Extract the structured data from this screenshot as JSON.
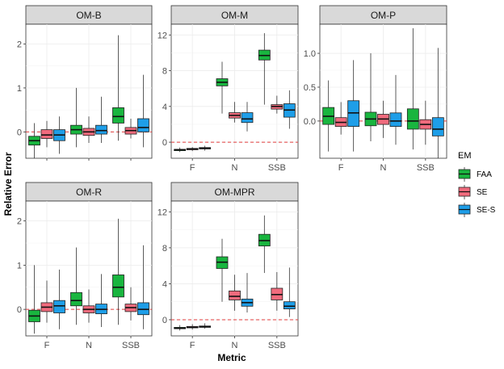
{
  "chart_data": {
    "type": "boxplot",
    "xlabel": "Metric",
    "ylabel": "Relative Error",
    "categories": [
      "F",
      "N",
      "SSB"
    ],
    "legend": {
      "title": "EM",
      "position": "right",
      "entries": [
        {
          "name": "FAA",
          "color": "#19b53f"
        },
        {
          "name": "SE",
          "color": "#f06b7d"
        },
        {
          "name": "SE-S",
          "color": "#1e9ee8"
        }
      ]
    },
    "reference_line": {
      "y": 0,
      "style": "dashed",
      "color": "#e03c3c"
    },
    "panels": [
      {
        "title": "OM-B",
        "ylim": [
          -0.6,
          2.45
        ],
        "yticks": [
          0,
          1,
          2
        ],
        "ytick_labels": [
          "0",
          "1",
          "2"
        ],
        "show_x_labels": false,
        "boxes": [
          {
            "category": "F",
            "em": "FAA",
            "min": -0.6,
            "q1": -0.3,
            "median": -0.2,
            "q3": -0.1,
            "max": 0.2
          },
          {
            "category": "F",
            "em": "SE",
            "min": -0.35,
            "q1": -0.15,
            "median": -0.07,
            "q3": 0.05,
            "max": 0.25
          },
          {
            "category": "F",
            "em": "SE-S",
            "min": -0.5,
            "q1": -0.2,
            "median": -0.07,
            "q3": 0.05,
            "max": 0.35
          },
          {
            "category": "N",
            "em": "FAA",
            "min": -0.35,
            "q1": -0.05,
            "median": 0.05,
            "q3": 0.15,
            "max": 1.0
          },
          {
            "category": "N",
            "em": "SE",
            "min": -0.25,
            "q1": -0.08,
            "median": 0.0,
            "q3": 0.08,
            "max": 0.35
          },
          {
            "category": "N",
            "em": "SE-S",
            "min": -0.25,
            "q1": -0.05,
            "median": 0.03,
            "q3": 0.15,
            "max": 0.8
          },
          {
            "category": "SSB",
            "em": "FAA",
            "min": -0.2,
            "q1": 0.2,
            "median": 0.35,
            "q3": 0.55,
            "max": 2.2
          },
          {
            "category": "SSB",
            "em": "SE",
            "min": -0.15,
            "q1": -0.05,
            "median": 0.03,
            "q3": 0.1,
            "max": 0.3
          },
          {
            "category": "SSB",
            "em": "SE-S",
            "min": -0.35,
            "q1": 0.0,
            "median": 0.1,
            "q3": 0.3,
            "max": 1.3
          }
        ]
      },
      {
        "title": "OM-M",
        "ylim": [
          -1.8,
          13.2
        ],
        "yticks": [
          0,
          4,
          8,
          12
        ],
        "ytick_labels": [
          "0",
          "4",
          "8",
          "12"
        ],
        "show_x_labels": true,
        "boxes": [
          {
            "category": "F",
            "em": "FAA",
            "min": -1.1,
            "q1": -0.95,
            "median": -0.85,
            "q3": -0.8,
            "max": -0.6
          },
          {
            "category": "F",
            "em": "SE",
            "min": -1.0,
            "q1": -0.85,
            "median": -0.75,
            "q3": -0.7,
            "max": -0.55
          },
          {
            "category": "F",
            "em": "SE-S",
            "min": -0.95,
            "q1": -0.75,
            "median": -0.7,
            "q3": -0.6,
            "max": -0.4
          },
          {
            "category": "N",
            "em": "FAA",
            "min": 3.2,
            "q1": 6.3,
            "median": 6.7,
            "q3": 7.1,
            "max": 9.0
          },
          {
            "category": "N",
            "em": "SE",
            "min": 2.2,
            "q1": 2.7,
            "median": 3.0,
            "q3": 3.3,
            "max": 4.5
          },
          {
            "category": "N",
            "em": "SE-S",
            "min": 1.2,
            "q1": 2.2,
            "median": 2.6,
            "q3": 3.3,
            "max": 4.5
          },
          {
            "category": "SSB",
            "em": "FAA",
            "min": 4.2,
            "q1": 9.2,
            "median": 9.7,
            "q3": 10.3,
            "max": 12.2
          },
          {
            "category": "SSB",
            "em": "SE",
            "min": 3.2,
            "q1": 3.7,
            "median": 4.0,
            "q3": 4.2,
            "max": 5.2
          },
          {
            "category": "SSB",
            "em": "SE-S",
            "min": 1.5,
            "q1": 2.8,
            "median": 3.6,
            "q3": 4.3,
            "max": 5.8
          }
        ]
      },
      {
        "title": "OM-P",
        "ylim": [
          -0.55,
          1.43
        ],
        "yticks": [
          0.0,
          0.5,
          1.0
        ],
        "ytick_labels": [
          "0.0",
          "0.5",
          "1.0"
        ],
        "show_x_labels": true,
        "boxes": [
          {
            "category": "F",
            "em": "FAA",
            "min": -0.45,
            "q1": -0.05,
            "median": 0.07,
            "q3": 0.2,
            "max": 0.6
          },
          {
            "category": "F",
            "em": "SE",
            "min": -0.2,
            "q1": -0.08,
            "median": -0.02,
            "q3": 0.05,
            "max": 0.28
          },
          {
            "category": "F",
            "em": "SE-S",
            "min": -0.45,
            "q1": -0.08,
            "median": 0.12,
            "q3": 0.3,
            "max": 0.9
          },
          {
            "category": "N",
            "em": "FAA",
            "min": -0.3,
            "q1": -0.07,
            "median": 0.03,
            "q3": 0.13,
            "max": 1.0
          },
          {
            "category": "N",
            "em": "SE",
            "min": -0.25,
            "q1": -0.05,
            "median": 0.03,
            "q3": 0.1,
            "max": 0.3
          },
          {
            "category": "N",
            "em": "SE-S",
            "min": -0.35,
            "q1": -0.08,
            "median": 0.0,
            "q3": 0.12,
            "max": 0.68
          },
          {
            "category": "SSB",
            "em": "FAA",
            "min": -0.42,
            "q1": -0.12,
            "median": 0.0,
            "q3": 0.18,
            "max": 1.37
          },
          {
            "category": "SSB",
            "em": "SE",
            "min": -0.35,
            "q1": -0.12,
            "median": -0.05,
            "q3": 0.02,
            "max": 0.3
          },
          {
            "category": "SSB",
            "em": "SE-S",
            "min": -0.55,
            "q1": -0.22,
            "median": -0.12,
            "q3": 0.05,
            "max": 1.08
          }
        ]
      },
      {
        "title": "OM-R",
        "ylim": [
          -0.6,
          2.45
        ],
        "yticks": [
          0,
          1,
          2
        ],
        "ytick_labels": [
          "0",
          "1",
          "2"
        ],
        "show_x_labels": true,
        "boxes": [
          {
            "category": "F",
            "em": "FAA",
            "min": -0.55,
            "q1": -0.28,
            "median": -0.15,
            "q3": -0.02,
            "max": 1.0
          },
          {
            "category": "F",
            "em": "SE",
            "min": -0.3,
            "q1": -0.05,
            "median": 0.05,
            "q3": 0.15,
            "max": 0.65
          },
          {
            "category": "F",
            "em": "SE-S",
            "min": -0.45,
            "q1": -0.08,
            "median": 0.08,
            "q3": 0.2,
            "max": 0.9
          },
          {
            "category": "N",
            "em": "FAA",
            "min": -0.35,
            "q1": 0.08,
            "median": 0.2,
            "q3": 0.38,
            "max": 1.4
          },
          {
            "category": "N",
            "em": "SE",
            "min": -0.3,
            "q1": -0.08,
            "median": 0.0,
            "q3": 0.08,
            "max": 0.45
          },
          {
            "category": "N",
            "em": "SE-S",
            "min": -0.4,
            "q1": -0.1,
            "median": 0.0,
            "q3": 0.12,
            "max": 0.8
          },
          {
            "category": "SSB",
            "em": "FAA",
            "min": -0.35,
            "q1": 0.28,
            "median": 0.5,
            "q3": 0.78,
            "max": 2.05
          },
          {
            "category": "SSB",
            "em": "SE",
            "min": -0.25,
            "q1": -0.05,
            "median": 0.04,
            "q3": 0.12,
            "max": 0.5
          },
          {
            "category": "SSB",
            "em": "SE-S",
            "min": -0.45,
            "q1": -0.12,
            "median": 0.0,
            "q3": 0.15,
            "max": 1.45
          }
        ]
      },
      {
        "title": "OM-MPR",
        "ylim": [
          -1.8,
          13.2
        ],
        "yticks": [
          0,
          4,
          8,
          12
        ],
        "ytick_labels": [
          "0",
          "4",
          "8",
          "12"
        ],
        "show_x_labels": true,
        "boxes": [
          {
            "category": "F",
            "em": "FAA",
            "min": -1.2,
            "q1": -1.0,
            "median": -0.95,
            "q3": -0.85,
            "max": -0.6
          },
          {
            "category": "F",
            "em": "SE",
            "min": -1.1,
            "q1": -0.9,
            "median": -0.85,
            "q3": -0.75,
            "max": -0.5
          },
          {
            "category": "F",
            "em": "SE-S",
            "min": -1.0,
            "q1": -0.85,
            "median": -0.78,
            "q3": -0.7,
            "max": -0.4
          },
          {
            "category": "N",
            "em": "FAA",
            "min": 2.0,
            "q1": 5.7,
            "median": 6.4,
            "q3": 7.0,
            "max": 9.0
          },
          {
            "category": "N",
            "em": "SE",
            "min": 1.0,
            "q1": 2.2,
            "median": 2.6,
            "q3": 3.2,
            "max": 5.0
          },
          {
            "category": "N",
            "em": "SE-S",
            "min": 0.8,
            "q1": 1.5,
            "median": 1.9,
            "q3": 2.3,
            "max": 5.2
          },
          {
            "category": "SSB",
            "em": "FAA",
            "min": 5.2,
            "q1": 8.2,
            "median": 8.8,
            "q3": 9.5,
            "max": 11.6
          },
          {
            "category": "SSB",
            "em": "SE",
            "min": 1.0,
            "q1": 2.2,
            "median": 2.8,
            "q3": 3.5,
            "max": 5.3
          },
          {
            "category": "SSB",
            "em": "SE-S",
            "min": 0.3,
            "q1": 1.2,
            "median": 1.5,
            "q3": 2.0,
            "max": 5.8
          }
        ]
      }
    ]
  }
}
